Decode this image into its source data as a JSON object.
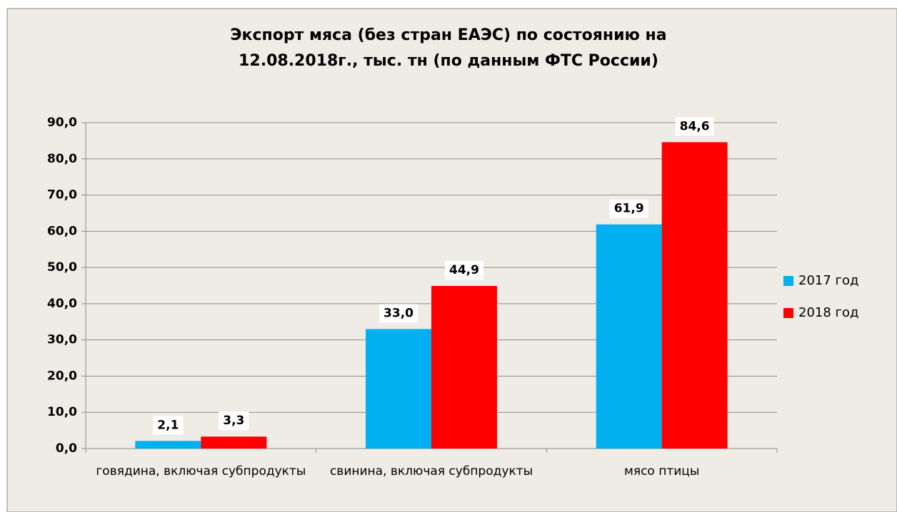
{
  "chart_data": {
    "type": "bar",
    "title": [
      "Экспорт мяса (без стран ЕАЭС) по состоянию на",
      "12.08.2018г., тыс. тн (по данным ФТС России)"
    ],
    "categories": [
      "говядина, включая субпродукты",
      "свинина, включая субпродукты",
      "мясо птицы"
    ],
    "series": [
      {
        "name": "2017 год",
        "color": "#00b0f0",
        "values": [
          2.1,
          33.0,
          61.9
        ],
        "value_labels": [
          "2,1",
          "33,0",
          "61,9"
        ]
      },
      {
        "name": "2018 год",
        "color": "#ff0000",
        "values": [
          3.3,
          44.9,
          84.6
        ],
        "value_labels": [
          "3,3",
          "44,9",
          "84,6"
        ]
      }
    ],
    "ylim": [
      0,
      90
    ],
    "yticks": [
      {
        "value": 0,
        "label": "0,0"
      },
      {
        "value": 10,
        "label": "10,0"
      },
      {
        "value": 20,
        "label": "20,0"
      },
      {
        "value": 30,
        "label": "30,0"
      },
      {
        "value": 40,
        "label": "40,0"
      },
      {
        "value": 50,
        "label": "50,0"
      },
      {
        "value": 60,
        "label": "60,0"
      },
      {
        "value": 70,
        "label": "70,0"
      },
      {
        "value": 80,
        "label": "80,0"
      },
      {
        "value": 90,
        "label": "90,0"
      }
    ],
    "grid": true,
    "legend": "right"
  }
}
